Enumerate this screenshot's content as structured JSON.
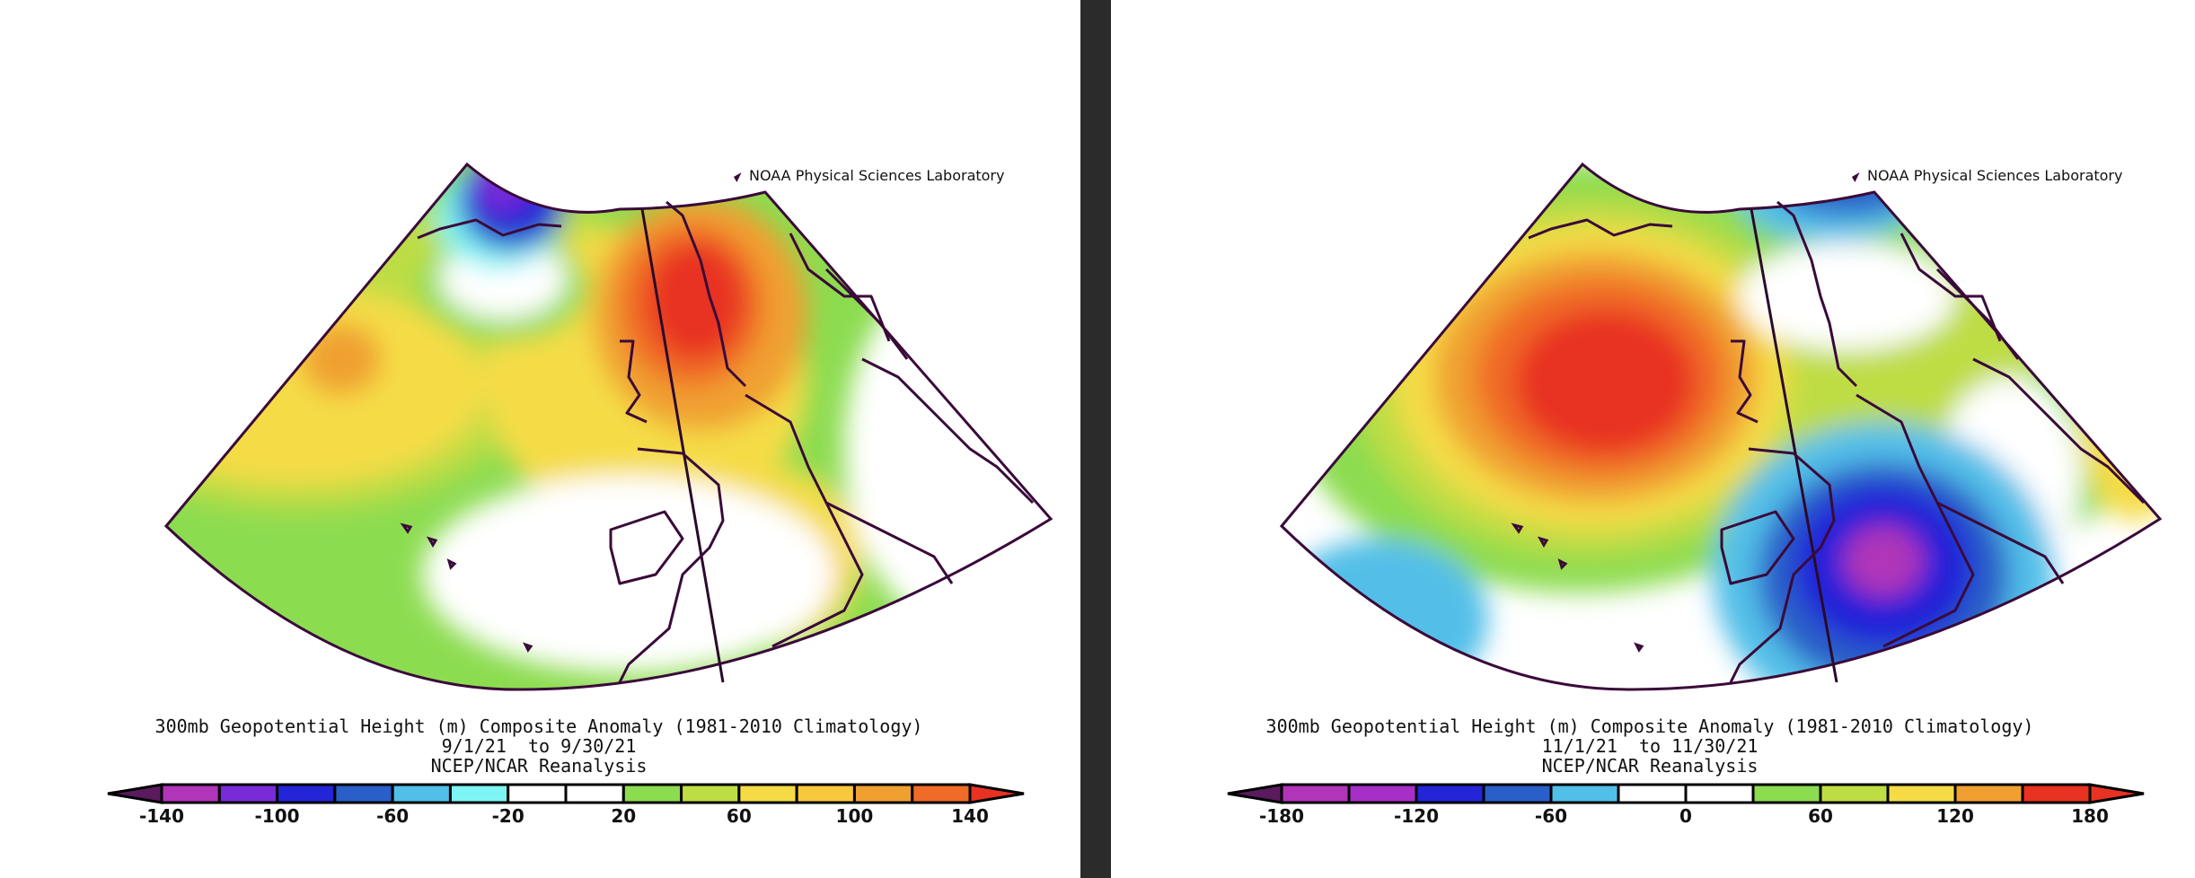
{
  "panels": [
    {
      "credit": "NOAA Physical Sciences Laboratory",
      "title_line1": "300mb Geopotential Height (m) Composite Anomaly (1981-2010 Climatology)",
      "title_line2": "9/1/21  to 9/30/21",
      "title_line3": "NCEP/NCAR Reanalysis",
      "colorbar": {
        "colors": [
          "#5a1a5e",
          "#b035b8",
          "#7a2bd8",
          "#2424d8",
          "#2a5ec8",
          "#52bfe8",
          "#7ef5f5",
          "#ffffff",
          "#ffffff",
          "#8cdc50",
          "#bedd45",
          "#f5dc46",
          "#f8c83c",
          "#f0a030",
          "#f06a28",
          "#e83222"
        ],
        "tick_labels": [
          "-140",
          "-100",
          "-60",
          "-20",
          "20",
          "60",
          "100",
          "140"
        ]
      }
    },
    {
      "credit": "NOAA Physical Sciences Laboratory",
      "title_line1": "300mb Geopotential Height (m) Composite Anomaly (1981-2010 Climatology)",
      "title_line2": "11/1/21  to 11/30/21",
      "title_line3": "NCEP/NCAR Reanalysis",
      "colorbar": {
        "colors": [
          "#5a1a5e",
          "#b035b8",
          "#a82ec8",
          "#2424d8",
          "#2a5ec8",
          "#52bfe8",
          "#ffffff",
          "#ffffff",
          "#8cdc50",
          "#bedd45",
          "#f5dc46",
          "#f0a030",
          "#e83222",
          "#e83222"
        ],
        "tick_labels": [
          "-180",
          "-120",
          "-60",
          "0",
          "60",
          "120",
          "180"
        ]
      }
    }
  ]
}
